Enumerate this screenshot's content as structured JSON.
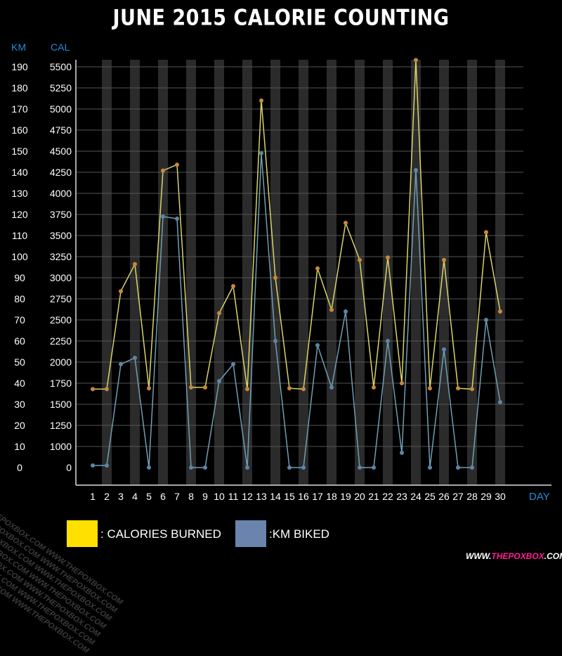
{
  "title": "JUNE 2015 CALORIE COUNTING",
  "colors": {
    "background": "#000000",
    "calories_line": "#d9d46a",
    "calories_marker": "#c8883a",
    "km_line": "#6f9fb4",
    "km_marker": "#5b86a8",
    "axis_unit_label": "#1f8fd6",
    "legend_calories": "#ffe000",
    "legend_km": "#6a84ae",
    "band": "#2b2b2b",
    "brand_accent": "#ff1f8e"
  },
  "legend": {
    "calories_label": ": CALORIES BURNED",
    "km_label": ":KM BIKED"
  },
  "brand": {
    "prefix": "WWW.",
    "accent": "THEPOXBOX",
    "suffix": ".COM"
  },
  "watermark_text": "WWW.THEPOXBOX.COM WWW.THEPOXBOX.COM",
  "chart_data": {
    "type": "line",
    "title": "JUNE 2015 CALORIE COUNTING",
    "xlabel": "DAY",
    "ylabel_left_outer": "KM",
    "ylabel_left_inner": "CAL",
    "x": [
      1,
      2,
      3,
      4,
      5,
      6,
      7,
      8,
      9,
      10,
      11,
      12,
      13,
      14,
      15,
      16,
      17,
      18,
      19,
      20,
      21,
      22,
      23,
      24,
      25,
      26,
      27,
      28,
      29,
      30
    ],
    "x_tick_labels": [
      "1",
      "2",
      "3",
      "4",
      "5",
      "6",
      "7",
      "8",
      "9",
      "10",
      "11",
      "12",
      "13",
      "14",
      "15",
      "16",
      "17",
      "18",
      "19",
      "20",
      "21",
      "22",
      "23",
      "24",
      "25",
      "26",
      "27",
      "28",
      "29",
      "30"
    ],
    "cal_ticks": [
      "0",
      "1000",
      "1250",
      "1500",
      "1750",
      "2000",
      "2250",
      "2500",
      "2750",
      "3000",
      "3250",
      "3500",
      "3750",
      "4000",
      "4250",
      "4500",
      "4750",
      "5000",
      "5250",
      "5500"
    ],
    "km_ticks": [
      "0",
      "10",
      "20",
      "30",
      "40",
      "50",
      "60",
      "70",
      "80",
      "90",
      "100",
      "110",
      "120",
      "130",
      "140",
      "150",
      "160",
      "170",
      "180",
      "190"
    ],
    "series": [
      {
        "name": "CALORIES BURNED",
        "axis": "cal",
        "values": [
          1680,
          1680,
          2840,
          3160,
          1690,
          4270,
          4340,
          1700,
          1700,
          2580,
          2900,
          1680,
          5100,
          3000,
          1690,
          1680,
          3110,
          2620,
          3650,
          3210,
          1700,
          3240,
          1750,
          5580,
          1690,
          3210,
          1690,
          1680,
          3540,
          2600
        ]
      },
      {
        "name": "KM BIKED",
        "axis": "km",
        "values": [
          1,
          1,
          49,
          52,
          0,
          119,
          118,
          0,
          0,
          41,
          49,
          0,
          149,
          60,
          0,
          0,
          58,
          38,
          74,
          0,
          0,
          60,
          7,
          141,
          0,
          56,
          0,
          0,
          70,
          31
        ]
      }
    ],
    "grid": true
  }
}
